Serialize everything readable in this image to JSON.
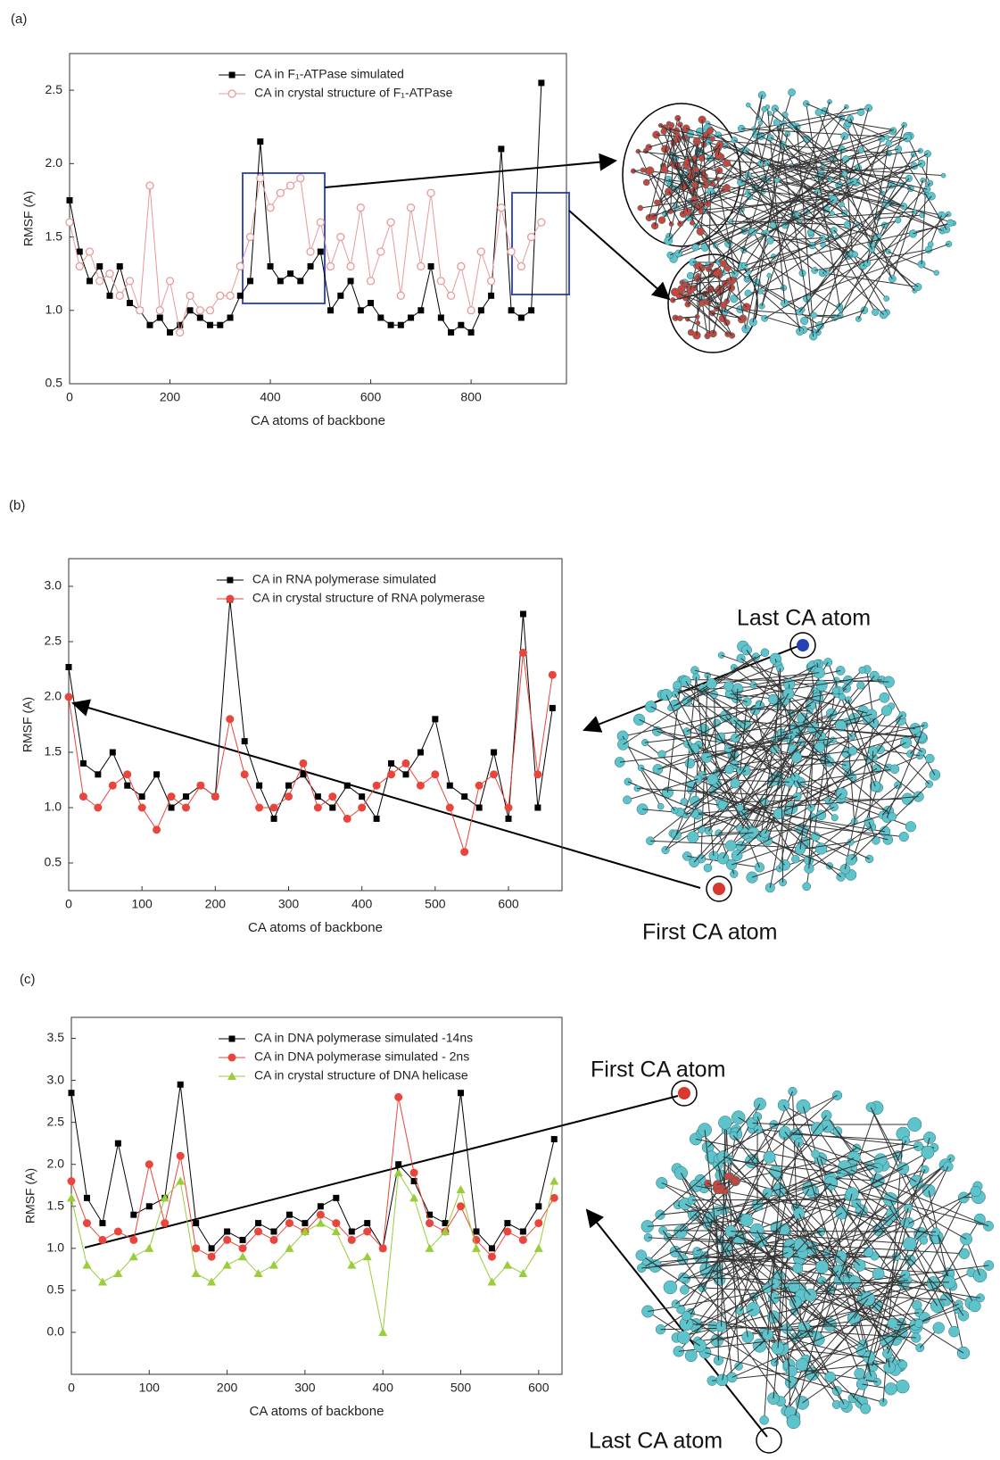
{
  "chart_data": [
    {
      "type": "line",
      "label": "(a)",
      "xlabel": "CA atoms of backbone",
      "ylabel": "RMSF (A)",
      "x": [
        0,
        20,
        40,
        60,
        80,
        100,
        120,
        140,
        160,
        180,
        200,
        220,
        240,
        260,
        280,
        300,
        320,
        340,
        360,
        380,
        400,
        420,
        440,
        460,
        480,
        500,
        520,
        540,
        560,
        580,
        600,
        620,
        640,
        660,
        680,
        700,
        720,
        740,
        760,
        780,
        800,
        820,
        840,
        860,
        880,
        900,
        920,
        940
      ],
      "xlim": [
        0,
        990
      ],
      "xticks": [
        0,
        200,
        400,
        600,
        800
      ],
      "ylim": [
        0.5,
        2.75
      ],
      "yticks": [
        0.5,
        {
          "value": 1,
          "label": "1.0"
        },
        1.5,
        {
          "value": 2,
          "label": "2.0"
        },
        2.5
      ],
      "legend": "upper center",
      "series": [
        {
          "name": "CA in F₁-ATPase simulated",
          "color": "#000000",
          "marker": "square",
          "values": [
            1.75,
            1.4,
            1.2,
            1.3,
            1.1,
            1.3,
            1.05,
            1.0,
            0.9,
            0.95,
            0.85,
            0.9,
            1.0,
            0.95,
            0.9,
            0.9,
            0.95,
            1.1,
            1.2,
            2.15,
            1.3,
            1.2,
            1.25,
            1.2,
            1.3,
            1.4,
            1.0,
            1.1,
            1.2,
            1.0,
            1.05,
            0.95,
            0.9,
            0.9,
            0.95,
            1.0,
            1.3,
            0.95,
            0.85,
            0.9,
            0.85,
            1.0,
            1.1,
            2.1,
            1.0,
            0.95,
            1.0,
            2.55
          ]
        },
        {
          "name": "CA in crystal structure of F₁-ATPase",
          "color": "#e89a9a",
          "marker": "open-circle",
          "values": [
            1.6,
            1.3,
            1.4,
            1.2,
            1.25,
            1.1,
            1.2,
            1.0,
            1.85,
            1.0,
            1.2,
            0.85,
            1.1,
            1.0,
            1.0,
            1.1,
            1.1,
            1.3,
            1.5,
            1.9,
            1.7,
            1.8,
            1.85,
            1.9,
            1.4,
            1.6,
            1.3,
            1.5,
            1.3,
            1.7,
            1.2,
            1.4,
            1.6,
            1.1,
            1.7,
            1.3,
            1.8,
            1.2,
            1.1,
            1.3,
            1.0,
            1.4,
            1.2,
            1.7,
            1.4,
            1.3,
            1.5,
            1.6
          ]
        }
      ]
    },
    {
      "type": "line",
      "label": "(b)",
      "xlabel": "CA atoms of backbone",
      "ylabel": "RMSF (A)",
      "x": [
        0,
        20,
        40,
        60,
        80,
        100,
        120,
        140,
        160,
        180,
        200,
        220,
        240,
        260,
        280,
        300,
        320,
        340,
        360,
        380,
        400,
        420,
        440,
        460,
        480,
        500,
        520,
        540,
        560,
        580,
        600,
        620,
        640,
        660
      ],
      "xlim": [
        0,
        673
      ],
      "xticks": [
        0,
        100,
        200,
        300,
        400,
        500,
        600
      ],
      "ylim": [
        0.25,
        3.25
      ],
      "yticks": [
        0.5,
        {
          "value": 1,
          "label": "1.0"
        },
        1.5,
        {
          "value": 2,
          "label": "2.0"
        },
        2.5,
        {
          "value": 3,
          "label": "3.0"
        }
      ],
      "legend": "upper center",
      "annotations": [
        "Last CA atom",
        "First CA atom"
      ],
      "series": [
        {
          "name": "CA in RNA polymerase simulated",
          "color": "#000000",
          "marker": "square",
          "values": [
            2.27,
            1.4,
            1.3,
            1.5,
            1.2,
            1.1,
            1.3,
            1.0,
            1.1,
            1.2,
            1.1,
            2.88,
            1.6,
            1.2,
            0.9,
            1.2,
            1.3,
            1.1,
            1.0,
            1.2,
            1.1,
            0.9,
            1.4,
            1.3,
            1.5,
            1.8,
            1.2,
            1.1,
            1.0,
            1.5,
            0.9,
            2.75,
            1.0,
            1.9
          ]
        },
        {
          "name": "CA in crystal structure of RNA polymerase",
          "color": "#e8453c",
          "marker": "circle",
          "values": [
            2.0,
            1.1,
            1.0,
            1.2,
            1.3,
            1.0,
            0.8,
            1.1,
            1.0,
            1.2,
            1.1,
            1.8,
            1.3,
            1.0,
            1.0,
            1.1,
            1.4,
            1.0,
            1.1,
            0.9,
            1.0,
            1.2,
            1.3,
            1.4,
            1.2,
            1.3,
            1.0,
            0.6,
            1.2,
            1.3,
            1.0,
            2.4,
            1.3,
            2.2
          ]
        }
      ]
    },
    {
      "type": "line",
      "label": "(c)",
      "xlabel": "CA atoms of backbone",
      "ylabel": "RMSF (A)",
      "x": [
        0,
        20,
        40,
        60,
        80,
        100,
        120,
        140,
        160,
        180,
        200,
        220,
        240,
        260,
        280,
        300,
        320,
        340,
        360,
        380,
        400,
        420,
        440,
        460,
        480,
        500,
        520,
        540,
        560,
        580,
        600,
        620
      ],
      "xlim": [
        0,
        630
      ],
      "xticks": [
        0,
        100,
        200,
        300,
        400,
        500,
        600
      ],
      "ylim": [
        -0.5,
        3.75
      ],
      "yticks": [
        {
          "value": 0,
          "label": "0.0"
        },
        0.5,
        {
          "value": 1,
          "label": "1.0"
        },
        1.5,
        {
          "value": 2,
          "label": "2.0"
        },
        2.5,
        {
          "value": 3,
          "label": "3.0"
        },
        3.5
      ],
      "legend": "upper center",
      "annotations": [
        "First CA atom",
        "Last CA atom"
      ],
      "series": [
        {
          "name": "CA in DNA polymerase simulated -14ns",
          "color": "#000000",
          "marker": "square",
          "values": [
            2.85,
            1.6,
            1.3,
            2.25,
            1.4,
            1.5,
            1.6,
            2.95,
            1.3,
            1.0,
            1.2,
            1.1,
            1.3,
            1.2,
            1.4,
            1.3,
            1.5,
            1.6,
            1.2,
            1.3,
            1.0,
            2.0,
            1.8,
            1.4,
            1.3,
            2.85,
            1.2,
            1.0,
            1.3,
            1.2,
            1.5,
            2.3
          ]
        },
        {
          "name": "CA in DNA polymerase simulated - 2ns",
          "color": "#e8453c",
          "marker": "circle",
          "values": [
            1.8,
            1.3,
            1.1,
            1.2,
            1.1,
            2.0,
            1.3,
            2.1,
            1.0,
            0.9,
            1.1,
            1.0,
            1.2,
            1.1,
            1.3,
            1.2,
            1.4,
            1.3,
            1.1,
            1.2,
            1.0,
            2.8,
            1.9,
            1.3,
            1.2,
            1.5,
            1.1,
            0.9,
            1.2,
            1.1,
            1.3,
            1.6
          ]
        },
        {
          "name": "CA in crystal structure of DNA helicase",
          "color": "#9acd3a",
          "marker": "triangle",
          "values": [
            1.6,
            0.8,
            0.6,
            0.7,
            0.9,
            1.0,
            1.6,
            1.8,
            0.7,
            0.6,
            0.8,
            0.9,
            0.7,
            0.8,
            1.0,
            1.2,
            1.3,
            1.2,
            0.8,
            0.9,
            0.0,
            1.9,
            1.6,
            1.0,
            1.2,
            1.7,
            1.0,
            0.6,
            0.8,
            0.7,
            1.0,
            1.8
          ]
        }
      ]
    }
  ]
}
